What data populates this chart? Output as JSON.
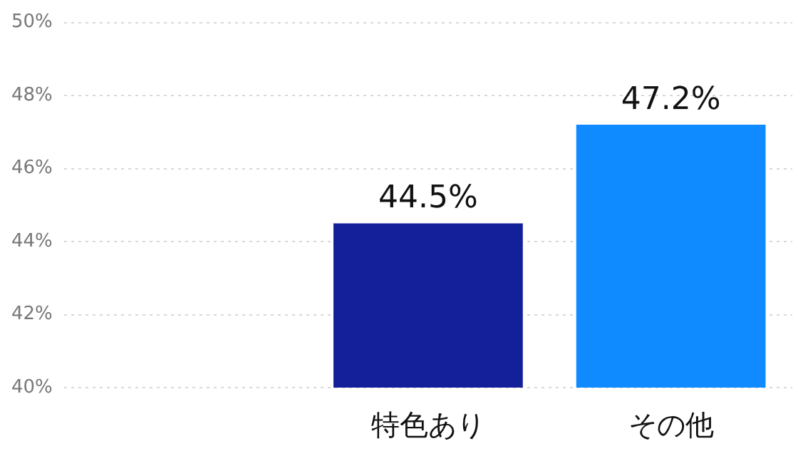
{
  "chart_data": {
    "type": "bar",
    "categories": [
      null,
      "特色あり",
      "その他"
    ],
    "values": [
      null,
      44.5,
      47.2
    ],
    "colors": [
      "#14209a",
      "#14209a",
      "#108bff"
    ],
    "value_labels": [
      null,
      "44.5%",
      "47.2%"
    ],
    "ylim": [
      40,
      50
    ],
    "yticks": [
      {
        "value": 40,
        "label": "40%"
      },
      {
        "value": 42,
        "label": "42%"
      },
      {
        "value": 44,
        "label": "44%"
      },
      {
        "value": 46,
        "label": "46%"
      },
      {
        "value": 48,
        "label": "48%"
      },
      {
        "value": 50,
        "label": "50%"
      }
    ],
    "grid": "y",
    "legend": false
  }
}
